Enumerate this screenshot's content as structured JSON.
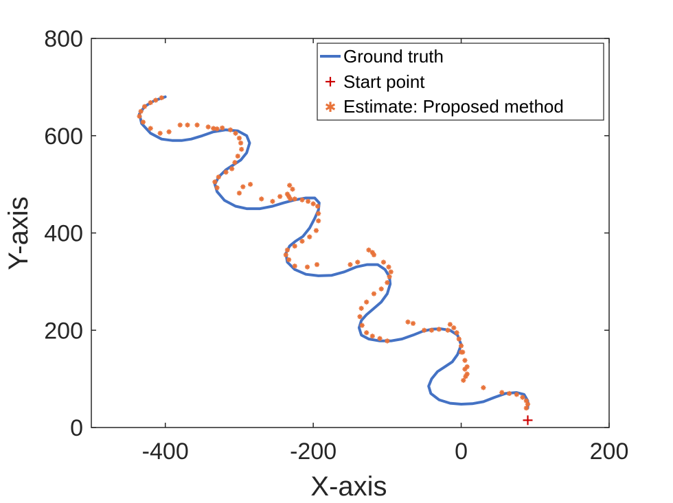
{
  "chart_data": {
    "type": "line",
    "xlabel": "X-axis",
    "ylabel": "Y-axis",
    "xlim": [
      -500,
      200
    ],
    "ylim": [
      0,
      800
    ],
    "xticks": [
      -400,
      -200,
      0,
      200
    ],
    "yticks": [
      0,
      200,
      400,
      600,
      800
    ],
    "grid": false,
    "legend_position": "top-right",
    "colors": {
      "ground_truth": "#4472c4",
      "start_point": "#cc0000",
      "estimate": "#e8733a"
    },
    "series": [
      {
        "name": "Ground truth",
        "kind": "line",
        "x": [
          -400,
          -415,
          -428,
          -435,
          -432,
          -420,
          -405,
          -390,
          -378,
          -365,
          -350,
          -335,
          -318,
          -302,
          -290,
          -286,
          -290,
          -298,
          -308,
          -318,
          -328,
          -333,
          -330,
          -320,
          -305,
          -290,
          -272,
          -255,
          -240,
          -225,
          -210,
          -198,
          -192,
          -193,
          -198,
          -205,
          -214,
          -224,
          -232,
          -237,
          -235,
          -225,
          -210,
          -193,
          -175,
          -158,
          -142,
          -127,
          -113,
          -103,
          -97,
          -96,
          -100,
          -108,
          -118,
          -128,
          -135,
          -138,
          -135,
          -125,
          -110,
          -95,
          -80,
          -65,
          -52,
          -40,
          -28,
          -15,
          -5,
          0,
          -5,
          -12,
          -22,
          -32,
          -40,
          -44,
          -41,
          -30,
          -15,
          0,
          15,
          30,
          45,
          60,
          75,
          85,
          90,
          90
        ],
        "y": [
          680,
          672,
          660,
          645,
          625,
          605,
          593,
          590,
          590,
          593,
          600,
          608,
          612,
          610,
          600,
          585,
          565,
          550,
          540,
          530,
          515,
          500,
          485,
          467,
          455,
          450,
          450,
          455,
          462,
          468,
          472,
          472,
          462,
          447,
          430,
          410,
          393,
          383,
          373,
          358,
          340,
          325,
          315,
          312,
          313,
          320,
          330,
          335,
          335,
          325,
          310,
          295,
          275,
          258,
          245,
          232,
          220,
          205,
          190,
          182,
          178,
          178,
          182,
          190,
          198,
          202,
          203,
          200,
          190,
          170,
          150,
          135,
          125,
          115,
          100,
          85,
          70,
          57,
          50,
          48,
          49,
          53,
          62,
          70,
          72,
          68,
          55,
          40
        ]
      },
      {
        "name": "Start point",
        "kind": "marker",
        "x": [
          90
        ],
        "y": [
          15
        ]
      },
      {
        "name": "Estimate: Proposed method",
        "kind": "scatter",
        "x": [
          -405,
          -413,
          -420,
          -428,
          -433,
          -435,
          -430,
          -420,
          -407,
          -395,
          -380,
          -370,
          -357,
          -342,
          -335,
          -330,
          -323,
          -312,
          -305,
          -300,
          -298,
          -297,
          -302,
          -306,
          -310,
          -318,
          -328,
          -333,
          -330,
          -300,
          -295,
          -285,
          -270,
          -255,
          -245,
          -232,
          -228,
          -235,
          -233,
          -231,
          -225,
          -215,
          -207,
          -200,
          -194,
          -193,
          -193,
          -196,
          -205,
          -215,
          -225,
          -235,
          -237,
          -233,
          -225,
          -208,
          -195,
          -150,
          -140,
          -125,
          -120,
          -118,
          -105,
          -98,
          -95,
          -97,
          -100,
          -108,
          -118,
          -128,
          -135,
          -137,
          -134,
          -128,
          -120,
          -110,
          -100,
          -72,
          -65,
          -50,
          -40,
          -30,
          -18,
          -15,
          -10,
          -6,
          -3,
          0,
          2,
          5,
          8,
          8,
          6,
          3,
          5,
          0,
          30,
          55,
          65,
          75,
          83,
          88,
          90,
          88
        ],
        "y": [
          678,
          673,
          668,
          660,
          650,
          640,
          628,
          615,
          605,
          608,
          622,
          622,
          622,
          618,
          615,
          614,
          616,
          612,
          605,
          595,
          585,
          572,
          558,
          545,
          532,
          525,
          515,
          505,
          493,
          482,
          495,
          500,
          470,
          465,
          475,
          498,
          490,
          480,
          475,
          470,
          470,
          468,
          465,
          460,
          455,
          440,
          425,
          405,
          392,
          383,
          373,
          365,
          355,
          345,
          332,
          330,
          335,
          335,
          340,
          365,
          360,
          355,
          340,
          330,
          320,
          310,
          298,
          285,
          275,
          258,
          245,
          228,
          210,
          195,
          188,
          183,
          178,
          217,
          214,
          200,
          200,
          202,
          200,
          212,
          205,
          195,
          182,
          168,
          155,
          138,
          125,
          110,
          105,
          97,
          120,
          155,
          82,
          72,
          70,
          68,
          62,
          55,
          48,
          40
        ]
      }
    ]
  }
}
